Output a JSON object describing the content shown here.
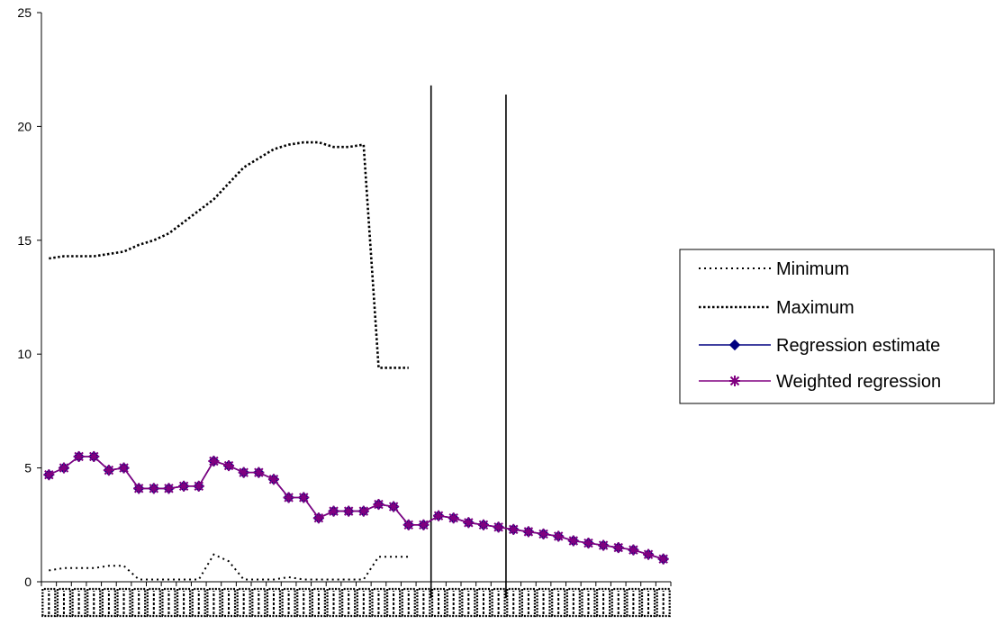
{
  "chart_data": {
    "type": "line",
    "title": "",
    "xlabel": "",
    "ylabel": "",
    "ylim": [
      0,
      25
    ],
    "yticks": [
      0,
      5,
      10,
      15,
      20,
      25
    ],
    "ytick_labels": [
      "0",
      "5",
      "10",
      "15",
      "20",
      "25"
    ],
    "x": [
      1,
      2,
      3,
      4,
      5,
      6,
      7,
      8,
      9,
      10,
      11,
      12,
      13,
      14,
      15,
      16,
      17,
      18,
      19,
      20,
      21,
      22,
      23,
      24,
      25,
      26,
      27,
      28,
      29,
      30,
      31,
      32,
      33,
      34,
      35,
      36,
      37,
      38,
      39,
      40,
      41,
      42
    ],
    "xlim": [
      0.5,
      42.5
    ],
    "vertical_markers": [
      {
        "x": 26.5,
        "top": 21.8
      },
      {
        "x": 31.5,
        "top": 21.4
      }
    ],
    "legend_position": "right",
    "series": [
      {
        "name": "Minimum",
        "style": "dotted-sparse",
        "color": "#000000",
        "values": [
          0.5,
          0.6,
          0.6,
          0.6,
          0.7,
          0.7,
          0.1,
          0.1,
          0.1,
          0.1,
          0.1,
          1.2,
          0.9,
          0.1,
          0.1,
          0.1,
          0.2,
          0.1,
          0.1,
          0.1,
          0.1,
          0.1,
          1.1,
          1.1,
          1.1,
          null,
          null,
          null,
          null,
          null,
          null,
          null,
          null,
          null,
          null,
          null,
          null,
          null,
          null,
          null,
          null,
          null
        ]
      },
      {
        "name": "Maximum",
        "style": "dotted-dense",
        "color": "#000000",
        "values": [
          14.2,
          14.3,
          14.3,
          14.3,
          14.4,
          14.5,
          14.8,
          15.0,
          15.3,
          15.8,
          16.3,
          16.8,
          17.5,
          18.2,
          18.6,
          19.0,
          19.2,
          19.3,
          19.3,
          19.1,
          19.1,
          19.2,
          9.4,
          9.4,
          9.4,
          null,
          null,
          null,
          null,
          null,
          null,
          null,
          null,
          null,
          null,
          null,
          null,
          null,
          null,
          null,
          null,
          null
        ]
      },
      {
        "name": "Regression estimate",
        "style": "solid-diamond",
        "color": "#000080",
        "values": [
          4.7,
          5.0,
          5.5,
          5.5,
          4.9,
          5.0,
          4.1,
          4.1,
          4.1,
          4.2,
          4.2,
          5.3,
          5.1,
          4.8,
          4.8,
          4.5,
          3.7,
          3.7,
          2.8,
          3.1,
          3.1,
          3.1,
          3.4,
          3.3,
          2.5,
          2.5,
          2.9,
          2.8,
          2.6,
          2.5,
          2.4,
          2.3,
          2.2,
          2.1,
          2.0,
          1.8,
          1.7,
          1.6,
          1.5,
          1.4,
          1.2,
          1.0
        ]
      },
      {
        "name": "Weighted regression",
        "style": "solid-star",
        "color": "#800080",
        "values": [
          4.7,
          5.0,
          5.5,
          5.5,
          4.9,
          5.0,
          4.1,
          4.1,
          4.1,
          4.2,
          4.2,
          5.3,
          5.1,
          4.8,
          4.8,
          4.5,
          3.7,
          3.7,
          2.8,
          3.1,
          3.1,
          3.1,
          3.4,
          3.3,
          2.5,
          2.5,
          2.9,
          2.8,
          2.6,
          2.5,
          2.4,
          2.3,
          2.2,
          2.1,
          2.0,
          1.8,
          1.7,
          1.6,
          1.5,
          1.4,
          1.2,
          1.0
        ]
      }
    ]
  }
}
